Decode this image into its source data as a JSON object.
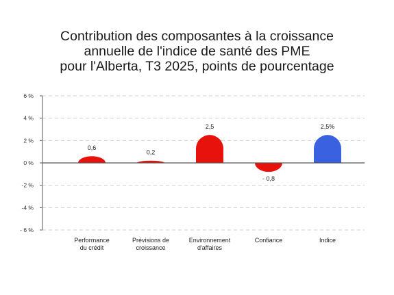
{
  "chart_data": {
    "type": "bar",
    "title_lines": [
      "Contribution des composantes à la croissance",
      "annuelle de l'indice de santé des PME",
      "pour l'Alberta, T3 2025, points de pourcentage"
    ],
    "categories": [
      [
        "Performance",
        "du crédit"
      ],
      [
        "Prévisions de",
        "croissance"
      ],
      [
        "Environnement",
        "d'affaires"
      ],
      [
        "Confiance"
      ],
      [
        "Indice"
      ]
    ],
    "values": [
      0.6,
      0.2,
      2.5,
      -0.8,
      2.5
    ],
    "data_labels": [
      "0,6",
      "0,2",
      "2,5",
      "- 0,8",
      "2,5%"
    ],
    "bar_colors": [
      "#e8120c",
      "#e8120c",
      "#e8120c",
      "#e8120c",
      "#3a62e0"
    ],
    "yticks": [
      {
        "value": 6,
        "label": "6 %"
      },
      {
        "value": 4,
        "label": "4 %"
      },
      {
        "value": 2,
        "label": "2 %"
      },
      {
        "value": 0,
        "label": "0 %"
      },
      {
        "value": -2,
        "label": "-2 %"
      },
      {
        "value": -4,
        "label": "-4 %"
      },
      {
        "value": -6,
        "label": "- 6 %"
      }
    ],
    "ylim": [
      -6,
      6
    ],
    "grid": true
  }
}
